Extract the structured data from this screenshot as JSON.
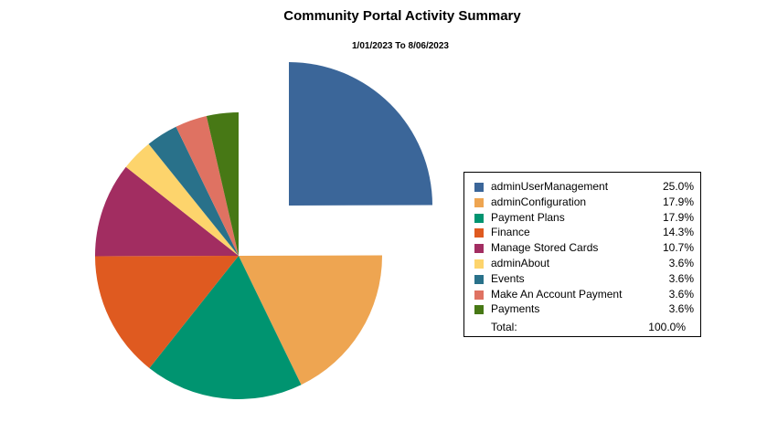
{
  "chart_data": {
    "type": "pie",
    "title": "Community Portal Activity Summary",
    "subtitle": "1/01/2023 To 8/06/2023",
    "exploded_slice": "adminUserManagement",
    "legend_position": "right",
    "slices": [
      {
        "label": "adminUserManagement",
        "value": 25.0,
        "display": "25.0%",
        "color": "#3b6699"
      },
      {
        "label": "adminConfiguration",
        "value": 17.9,
        "display": "17.9%",
        "color": "#eea551"
      },
      {
        "label": "Payment Plans",
        "value": 17.9,
        "display": "17.9%",
        "color": "#009470"
      },
      {
        "label": "Finance",
        "value": 14.3,
        "display": "14.3%",
        "color": "#df5a20"
      },
      {
        "label": "Manage Stored Cards",
        "value": 10.7,
        "display": "10.7%",
        "color": "#a22d61"
      },
      {
        "label": "adminAbout",
        "value": 3.6,
        "display": "3.6%",
        "color": "#fdd46c"
      },
      {
        "label": "Events",
        "value": 3.6,
        "display": "3.6%",
        "color": "#29718a"
      },
      {
        "label": "Make An Account Payment",
        "value": 3.6,
        "display": "3.6%",
        "color": "#df7262"
      },
      {
        "label": "Payments",
        "value": 3.6,
        "display": "3.6%",
        "color": "#477815"
      }
    ],
    "total": {
      "label": "Total:",
      "display": "100.0%"
    }
  }
}
